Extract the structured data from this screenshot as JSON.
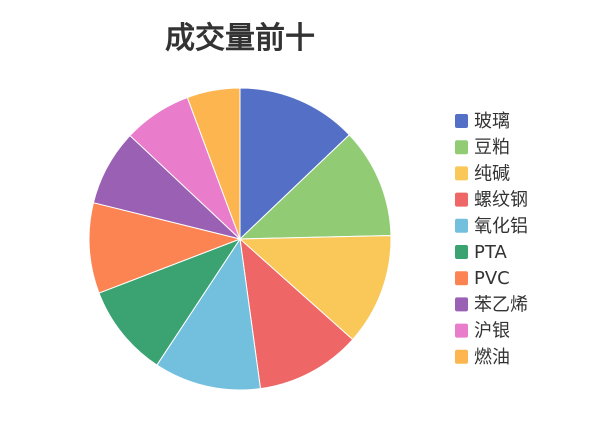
{
  "chart_data": {
    "type": "pie",
    "title": "成交量前十",
    "categories": [
      "玻璃",
      "豆粕",
      "纯碱",
      "螺纹钢",
      "氧化铝",
      "PTA",
      "PVC",
      "苯乙烯",
      "沪银",
      "燃油"
    ],
    "values": [
      12.5,
      11.4,
      11.6,
      10.9,
      11.1,
      9.6,
      9.4,
      7.9,
      7.1,
      5.5
    ],
    "colors": [
      "#5470c6",
      "#91cc75",
      "#fac858",
      "#ee6666",
      "#73c0de",
      "#3ba272",
      "#fc8452",
      "#9a60b4",
      "#ea7ccc",
      "#fcb54f"
    ],
    "legend_position": "right",
    "start_angle_deg": 90,
    "direction": "clockwise"
  }
}
